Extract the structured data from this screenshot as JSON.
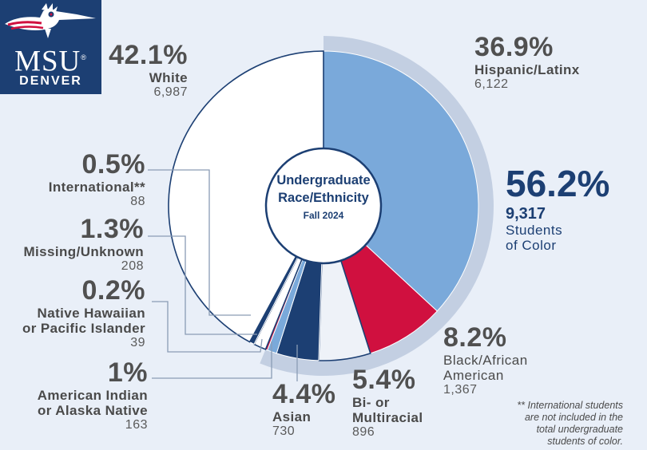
{
  "logo": {
    "line1": "MSU",
    "trademark": "®",
    "line2": "DENVER"
  },
  "center": {
    "title_line1": "Undergraduate",
    "title_line2": "Race/Ethnicity",
    "term": "Fall 2024"
  },
  "students_of_color": {
    "percent": "56.2%",
    "count": "9,317",
    "label_line1": "Students",
    "label_line2": "of Color"
  },
  "note": {
    "line1": "** International students",
    "line2": "are not included in the",
    "line3": "total undergraduate",
    "line4": "students of color."
  },
  "colors": {
    "background": "#e9eff8",
    "navy": "#1c3f73",
    "hispanic": "#7aa9da",
    "black": "#d0103f",
    "multiracial": "#eef2f8",
    "asian": "#1c3f73",
    "native": "#7aa9da",
    "pacific": "#d0103f",
    "missing": "#ffffff",
    "international": "#1c3f73",
    "white": "#ffffff",
    "outline": "#1c3f73",
    "ring": "#c3cfe2"
  },
  "chart_data": {
    "type": "pie",
    "variant": "donut",
    "title": "Undergraduate Race/Ethnicity",
    "subtitle": "Fall 2024",
    "slices": [
      {
        "key": "hispanic",
        "label": "Hispanic/Latinx",
        "percent": 36.9,
        "percent_text": "36.9%",
        "count": 6122,
        "count_text": "6,122",
        "color": "#7aa9da"
      },
      {
        "key": "black",
        "label": "Black/African American",
        "label_line1": "Black/African",
        "label_line2": "American",
        "percent": 8.2,
        "percent_text": "8.2%",
        "count": 1367,
        "count_text": "1,367",
        "color": "#d0103f"
      },
      {
        "key": "multiracial",
        "label": "Bi- or Multiracial",
        "label_line1": "Bi- or",
        "label_line2": "Multiracial",
        "percent": 5.4,
        "percent_text": "5.4%",
        "count": 896,
        "count_text": "896",
        "color": "#eef2f8"
      },
      {
        "key": "asian",
        "label": "Asian",
        "percent": 4.4,
        "percent_text": "4.4%",
        "count": 730,
        "count_text": "730",
        "color": "#1c3f73"
      },
      {
        "key": "native",
        "label": "American Indian or Alaska Native",
        "label_line1": "American Indian",
        "label_line2": "or Alaska Native",
        "percent": 1.0,
        "percent_text": "1%",
        "count": 163,
        "count_text": "163",
        "color": "#7aa9da"
      },
      {
        "key": "pacific",
        "label": "Native Hawaiian or Pacific Islander",
        "label_line1": "Native Hawaiian",
        "label_line2": "or Pacific Islander",
        "percent": 0.2,
        "percent_text": "0.2%",
        "count": 39,
        "count_text": "39",
        "color": "#d0103f"
      },
      {
        "key": "missing",
        "label": "Missing/Unknown",
        "percent": 1.3,
        "percent_text": "1.3%",
        "count": 208,
        "count_text": "208",
        "color": "#ffffff"
      },
      {
        "key": "international",
        "label": "International**",
        "percent": 0.5,
        "percent_text": "0.5%",
        "count": 88,
        "count_text": "88",
        "color": "#1c3f73"
      },
      {
        "key": "white",
        "label": "White",
        "percent": 42.1,
        "percent_text": "42.1%",
        "count": 6987,
        "count_text": "6,987",
        "color": "#ffffff"
      }
    ],
    "students_of_color_group": [
      "hispanic",
      "black",
      "multiracial",
      "asian",
      "native",
      "pacific"
    ]
  }
}
